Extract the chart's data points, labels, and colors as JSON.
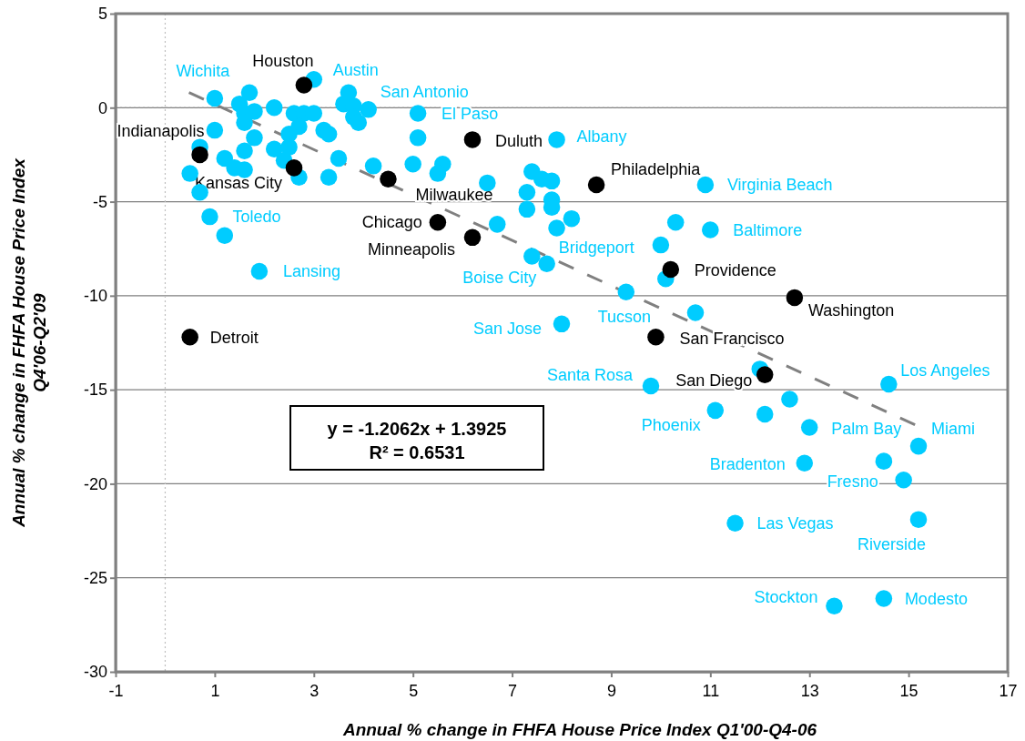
{
  "chart_data": {
    "type": "scatter",
    "xlabel": "Annual % change in FHFA House Price Index Q1'00-Q4-06",
    "ylabel": "Annual % change in FHFA House Price Index Q4'06-Q2'09",
    "xlim": [
      -1,
      17
    ],
    "xticks": [
      -1,
      1,
      3,
      5,
      7,
      9,
      11,
      13,
      15,
      17
    ],
    "ylim": [
      -30,
      5
    ],
    "yticks": [
      -30,
      -25,
      -20,
      -15,
      -10,
      -5,
      0,
      5
    ],
    "grid": "y",
    "marker": "circle",
    "ref_lines": [
      {
        "axis": "x",
        "value": 0,
        "line_style": "dotted",
        "color": "#bfbfbf"
      },
      {
        "axis": "y",
        "value": 0,
        "line_style": "dotted",
        "color": "#8c8c8c"
      }
    ],
    "series": [
      {
        "color": "#00ccff",
        "x": [
          1.0,
          3.0,
          1.7,
          1.5,
          1.8,
          1.6,
          1.6,
          2.2,
          2.6,
          2.8,
          3.0,
          2.7,
          2.5,
          3.2,
          3.3,
          3.7,
          3.6,
          3.8,
          4.1,
          3.8,
          3.9,
          5.1,
          5.1,
          7.9,
          0.7,
          1.0,
          1.8,
          1.6,
          1.2,
          1.4,
          1.6,
          0.5,
          0.7,
          2.2,
          2.5,
          2.4,
          2.7,
          3.3,
          3.5,
          4.2,
          5.0,
          5.6,
          5.5,
          6.5,
          7.4,
          7.6,
          7.8,
          7.3,
          7.3,
          7.8,
          7.8,
          7.9,
          0.9,
          1.2,
          1.9,
          6.7,
          7.4,
          7.7,
          10.9,
          8.2,
          10.3,
          11.0,
          10.0,
          10.1,
          9.3,
          10.7,
          8.0,
          9.8,
          12.0,
          14.6,
          12.6,
          11.1,
          12.1,
          13.0,
          15.2,
          12.9,
          14.5,
          14.9,
          11.5,
          15.2,
          13.5,
          14.5
        ],
        "values": [
          0.5,
          1.5,
          0.8,
          0.2,
          -0.2,
          -0.3,
          -0.8,
          0.0,
          -0.3,
          -0.3,
          -0.3,
          -1.0,
          -1.4,
          -1.2,
          -1.4,
          0.8,
          0.2,
          0.1,
          -0.1,
          -0.5,
          -0.8,
          -0.3,
          -1.6,
          -1.7,
          -2.1,
          -1.2,
          -1.6,
          -2.3,
          -2.7,
          -3.2,
          -3.3,
          -3.5,
          -4.5,
          -2.2,
          -2.1,
          -2.8,
          -3.7,
          -3.7,
          -2.7,
          -3.1,
          -3.0,
          -3.0,
          -3.5,
          -4.0,
          -3.4,
          -3.8,
          -3.9,
          -4.5,
          -5.4,
          -4.9,
          -5.3,
          -6.4,
          -5.8,
          -6.8,
          -8.7,
          -6.2,
          -7.9,
          -8.3,
          -4.1,
          -5.9,
          -6.1,
          -6.5,
          -7.3,
          -9.1,
          -9.8,
          -10.9,
          -11.5,
          -14.8,
          -13.9,
          -14.7,
          -15.5,
          -16.1,
          -16.3,
          -17.0,
          -18.0,
          -18.9,
          -18.8,
          -19.8,
          -22.1,
          -21.9,
          -26.5,
          -26.1
        ]
      },
      {
        "color": "#000000",
        "x": [
          2.8,
          0.7,
          2.6,
          6.2,
          4.5,
          5.5,
          6.2,
          8.7,
          10.2,
          12.7,
          9.9,
          12.1,
          0.5
        ],
        "values": [
          1.2,
          -2.5,
          -3.2,
          -1.7,
          -3.8,
          -6.1,
          -6.9,
          -4.1,
          -8.6,
          -10.1,
          -12.2,
          -14.2,
          -12.2
        ]
      },
      {
        "type": "line",
        "color": "#808080",
        "line_style": "dashed",
        "marker": "none",
        "x": [
          0.48,
          15.13
        ],
        "values": [
          0.81,
          -16.86
        ]
      }
    ],
    "annotations": [
      {
        "text": "Wichita",
        "x": 1.0,
        "y": 0.5
      },
      {
        "text": "Austin",
        "x": 3.0,
        "y": 1.5
      },
      {
        "text": "San Antonio",
        "x": 4.1,
        "y": -0.1
      },
      {
        "text": "El Paso",
        "x": 5.1,
        "y": -0.3
      },
      {
        "text": "Albany",
        "x": 7.9,
        "y": -1.7
      },
      {
        "text": "Toledo",
        "x": 0.9,
        "y": -5.8
      },
      {
        "text": "Lansing",
        "x": 1.9,
        "y": -8.7
      },
      {
        "text": "Boise City",
        "x": 7.4,
        "y": -7.9
      },
      {
        "text": "Bridgeport",
        "x": 7.7,
        "y": -8.3
      },
      {
        "text": "Virginia Beach",
        "x": 10.9,
        "y": -4.1
      },
      {
        "text": "Baltimore",
        "x": 11.0,
        "y": -6.5
      },
      {
        "text": "Tucson",
        "x": 10.7,
        "y": -10.9
      },
      {
        "text": "San Jose",
        "x": 8.0,
        "y": -11.5
      },
      {
        "text": "Santa Rosa",
        "x": 9.8,
        "y": -14.8
      },
      {
        "text": "Los Angeles",
        "x": 14.6,
        "y": -14.7
      },
      {
        "text": "Phoenix",
        "x": 11.1,
        "y": -16.1
      },
      {
        "text": "Palm Bay",
        "x": 13.0,
        "y": -17.0
      },
      {
        "text": "Miami",
        "x": 15.2,
        "y": -18.0
      },
      {
        "text": "Bradenton",
        "x": 12.9,
        "y": -18.9
      },
      {
        "text": "Fresno",
        "x": 14.9,
        "y": -19.8
      },
      {
        "text": "Las Vegas",
        "x": 11.5,
        "y": -22.1
      },
      {
        "text": "Riverside",
        "x": 15.2,
        "y": -21.9
      },
      {
        "text": "Stockton",
        "x": 13.5,
        "y": -26.5
      },
      {
        "text": "Modesto",
        "x": 14.5,
        "y": -26.1
      },
      {
        "text": "Houston",
        "x": 2.8,
        "y": 1.2
      },
      {
        "text": "Indianapolis",
        "x": 0.7,
        "y": -2.5
      },
      {
        "text": "Kansas City",
        "x": 2.6,
        "y": -3.2
      },
      {
        "text": "Duluth",
        "x": 6.2,
        "y": -1.7
      },
      {
        "text": "Milwaukee",
        "x": 4.5,
        "y": -3.8
      },
      {
        "text": "Chicago",
        "x": 5.5,
        "y": -6.1
      },
      {
        "text": "Minneapolis",
        "x": 6.2,
        "y": -6.9
      },
      {
        "text": "Philadelphia",
        "x": 8.7,
        "y": -4.1
      },
      {
        "text": "Providence",
        "x": 10.2,
        "y": -8.6
      },
      {
        "text": "Washington",
        "x": 12.7,
        "y": -10.1
      },
      {
        "text": "San Francisco",
        "x": 9.9,
        "y": -12.2
      },
      {
        "text": "San Diego",
        "x": 12.1,
        "y": -14.2
      },
      {
        "text": "Detroit",
        "x": 0.5,
        "y": -12.2
      },
      "y = -1.2062x + 1.3925",
      "R² = 0.6531"
    ]
  }
}
